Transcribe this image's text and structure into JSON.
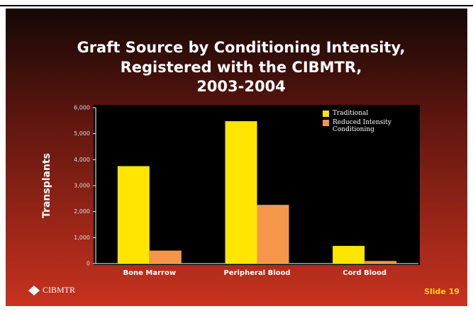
{
  "chart_data": {
    "type": "bar",
    "title": [
      "Graft Source by Conditioning Intensity,",
      "Registered with the CIBMTR,",
      "2003-2004"
    ],
    "ylabel": "Transplants",
    "categories": [
      "Bone Marrow",
      "Peripheral Blood",
      "Cord Blood"
    ],
    "series": [
      {
        "name": "Traditional",
        "color": "#ffe600",
        "values": [
          3750,
          5480,
          680
        ]
      },
      {
        "name": "Reduced Intensity Conditioning",
        "color": "#f5964a",
        "values": [
          500,
          2260,
          100
        ]
      }
    ],
    "ylim": [
      0,
      6000
    ],
    "yticks": [
      0,
      {
        "value": 1000,
        "label": "1,000"
      },
      {
        "value": 2000,
        "label": "2,000"
      },
      {
        "value": 3000,
        "label": "3,000"
      },
      {
        "value": 4000,
        "label": "4,000"
      },
      {
        "value": 5000,
        "label": "5,000"
      },
      {
        "value": 6000,
        "label": "6,000"
      }
    ],
    "grid": false,
    "legend": "top-right"
  },
  "slide": {
    "logo": "CIBMTR",
    "number": "Slide 19"
  }
}
